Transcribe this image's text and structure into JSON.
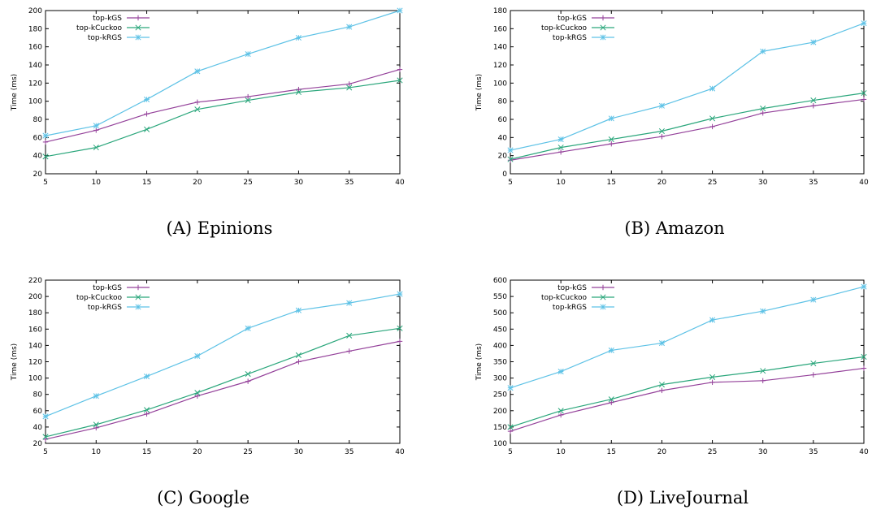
{
  "chart_data": [
    {
      "type": "line",
      "caption": "(A) Epinions",
      "ylabel": "Time (ms)",
      "x": [
        5,
        10,
        15,
        20,
        25,
        30,
        35,
        40
      ],
      "xlim": [
        5,
        40
      ],
      "ylim": [
        20,
        200
      ],
      "yticks": [
        20,
        40,
        60,
        80,
        100,
        120,
        140,
        160,
        180,
        200
      ],
      "grid": false,
      "legend": "top-left",
      "series": [
        {
          "name": "top-kGS",
          "color": "#94419a",
          "marker": "plus",
          "values": [
            55,
            68,
            86,
            99,
            105,
            113,
            119,
            135
          ]
        },
        {
          "name": "top-kCuckoo",
          "color": "#2aa67b",
          "marker": "x",
          "values": [
            39,
            49,
            69,
            91,
            101,
            110,
            115,
            123
          ]
        },
        {
          "name": "top-kRGS",
          "color": "#5ec2e6",
          "marker": "star",
          "values": [
            62,
            73,
            102,
            133,
            152,
            170,
            182,
            200
          ]
        }
      ]
    },
    {
      "type": "line",
      "caption": "(B) Amazon",
      "ylabel": "Time (ms)",
      "x": [
        5,
        10,
        15,
        20,
        25,
        30,
        35,
        40
      ],
      "xlim": [
        5,
        40
      ],
      "ylim": [
        0,
        180
      ],
      "yticks": [
        0,
        20,
        40,
        60,
        80,
        100,
        120,
        140,
        160,
        180
      ],
      "grid": false,
      "legend": "top-left",
      "series": [
        {
          "name": "top-kGS",
          "color": "#94419a",
          "marker": "plus",
          "values": [
            15,
            24,
            33,
            41,
            52,
            67,
            75,
            82
          ]
        },
        {
          "name": "top-kCuckoo",
          "color": "#2aa67b",
          "marker": "x",
          "values": [
            16,
            29,
            38,
            47,
            61,
            72,
            81,
            89
          ]
        },
        {
          "name": "top-kRGS",
          "color": "#5ec2e6",
          "marker": "star",
          "values": [
            26,
            38,
            61,
            75,
            94,
            135,
            145,
            166
          ]
        }
      ]
    },
    {
      "type": "line",
      "caption": "(C) Google",
      "ylabel": "Time (ms)",
      "x": [
        5,
        10,
        15,
        20,
        25,
        30,
        35,
        40
      ],
      "xlim": [
        5,
        40
      ],
      "ylim": [
        20,
        220
      ],
      "yticks": [
        20,
        40,
        60,
        80,
        100,
        120,
        140,
        160,
        180,
        200,
        220
      ],
      "grid": false,
      "legend": "top-left",
      "series": [
        {
          "name": "top-kGS",
          "color": "#94419a",
          "marker": "plus",
          "values": [
            25,
            39,
            56,
            78,
            96,
            120,
            133,
            145
          ]
        },
        {
          "name": "top-kCuckoo",
          "color": "#2aa67b",
          "marker": "x",
          "values": [
            28,
            43,
            61,
            82,
            105,
            128,
            152,
            161
          ]
        },
        {
          "name": "top-kRGS",
          "color": "#5ec2e6",
          "marker": "star",
          "values": [
            53,
            78,
            102,
            127,
            161,
            183,
            192,
            203
          ]
        }
      ]
    },
    {
      "type": "line",
      "caption": "(D) LiveJournal",
      "ylabel": "Time (ms)",
      "x": [
        5,
        10,
        15,
        20,
        25,
        30,
        35,
        40
      ],
      "xlim": [
        5,
        40
      ],
      "ylim": [
        100,
        600
      ],
      "yticks": [
        100,
        150,
        200,
        250,
        300,
        350,
        400,
        450,
        500,
        550,
        600
      ],
      "grid": false,
      "legend": "top-left",
      "series": [
        {
          "name": "top-kGS",
          "color": "#94419a",
          "marker": "plus",
          "values": [
            137,
            187,
            225,
            262,
            287,
            292,
            310,
            330
          ]
        },
        {
          "name": "top-kCuckoo",
          "color": "#2aa67b",
          "marker": "x",
          "values": [
            150,
            200,
            235,
            280,
            303,
            322,
            345,
            365
          ]
        },
        {
          "name": "top-kRGS",
          "color": "#5ec2e6",
          "marker": "star",
          "values": [
            270,
            320,
            385,
            407,
            478,
            505,
            540,
            580
          ]
        }
      ]
    }
  ]
}
